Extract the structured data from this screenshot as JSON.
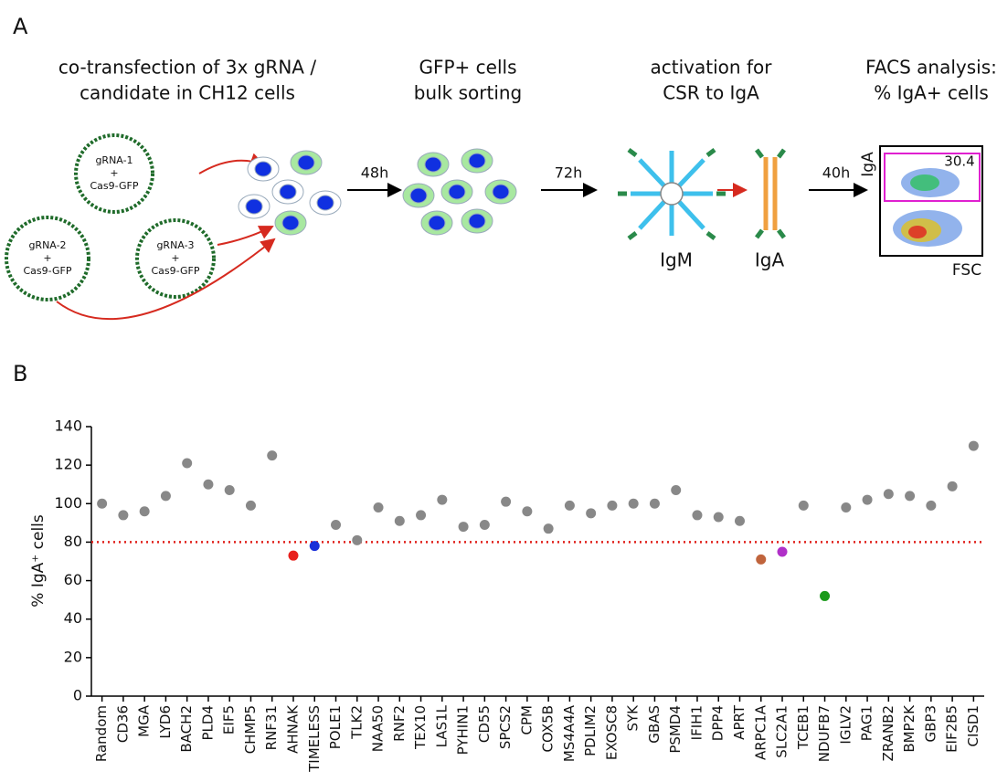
{
  "panel_a": {
    "label": "A",
    "steps": [
      {
        "lines": [
          "co-transfection of 3x gRNA /",
          "candidate in CH12 cells"
        ]
      },
      {
        "lines": [
          "GFP+ cells",
          "bulk sorting"
        ]
      },
      {
        "lines": [
          "activation for",
          "CSR to IgA"
        ]
      },
      {
        "lines": [
          "FACS analysis:",
          "% IgA+ cells"
        ]
      }
    ],
    "plasmids": [
      {
        "lines": [
          "gRNA-1",
          "+",
          "Cas9-GFP"
        ]
      },
      {
        "lines": [
          "gRNA-2",
          "+",
          "Cas9-GFP"
        ]
      },
      {
        "lines": [
          "gRNA-3",
          "+",
          "Cas9-GFP"
        ]
      }
    ],
    "times": [
      "48h",
      "72h",
      "40h"
    ],
    "antibodies": [
      "IgM",
      "IgA"
    ],
    "facs": {
      "y_label": "IgA",
      "x_label": "FSC",
      "gate_value": 30.4
    }
  },
  "chart_data": {
    "type": "scatter",
    "panel_label": "B",
    "y_label": "% IgA⁺ cells",
    "categories": [
      "Random",
      "CD36",
      "MGA",
      "LYD6",
      "BACH2",
      "PLD4",
      "EIF5",
      "CHMP5",
      "RNF31",
      "AHNAK",
      "TIMELESS",
      "POLE1",
      "TLK2",
      "NAA50",
      "RNF2",
      "TEX10",
      "LAS1L",
      "PYHIN1",
      "CD55",
      "SPCS2",
      "CPM",
      "COX5B",
      "MS4A4A",
      "PDLIM2",
      "EXOSC8",
      "SYK",
      "GBAS",
      "PSMD4",
      "IFIH1",
      "DPP4",
      "APRT",
      "ARPC1A",
      "SLC2A1",
      "TCEB1",
      "NDUFB7",
      "IGLV2",
      "PAG1",
      "ZRANB2",
      "BMP2K",
      "GBP3",
      "EIF2B5",
      "CISD1"
    ],
    "values": [
      100,
      94,
      96,
      104,
      121,
      110,
      107,
      99,
      125,
      73,
      78,
      89,
      81,
      98,
      91,
      94,
      102,
      88,
      89,
      101,
      96,
      87,
      99,
      95,
      99,
      100,
      100,
      107,
      94,
      93,
      91,
      71,
      75,
      99,
      52,
      98,
      102,
      105,
      104,
      99,
      109,
      130
    ],
    "colors": [
      "#888888",
      "#888888",
      "#888888",
      "#888888",
      "#888888",
      "#888888",
      "#888888",
      "#888888",
      "#888888",
      "#e8201c",
      "#1a2fd8",
      "#888888",
      "#888888",
      "#888888",
      "#888888",
      "#888888",
      "#888888",
      "#888888",
      "#888888",
      "#888888",
      "#888888",
      "#888888",
      "#888888",
      "#888888",
      "#888888",
      "#888888",
      "#888888",
      "#888888",
      "#888888",
      "#888888",
      "#888888",
      "#c0643c",
      "#b030c8",
      "#888888",
      "#1a9a1a",
      "#888888",
      "#888888",
      "#888888",
      "#888888",
      "#888888",
      "#888888",
      "#888888"
    ],
    "ylim": [
      0,
      140
    ],
    "yticks": [
      0,
      20,
      40,
      60,
      80,
      100,
      120,
      140
    ],
    "reference_line": {
      "value": 80,
      "color": "#e0201b"
    }
  }
}
